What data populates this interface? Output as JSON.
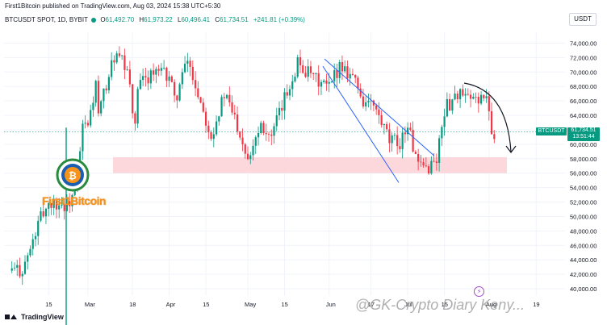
{
  "header": {
    "published": "First1Bitcoin published on TradingView.com, Aug 03, 2024 15:38 UTC+5:30",
    "symbol": "BTCUSDT SPOT, 1D, BYBIT",
    "open_label": "O",
    "open": "61,492.70",
    "high_label": "H",
    "high": "61,973.22",
    "low_label": "L",
    "low": "60,496.41",
    "close_label": "C",
    "close": "61,734.51",
    "change": "+241.81 (+0.39%)",
    "currency_button": "USDT"
  },
  "price_tag": {
    "pair": "BTCUSDT",
    "price": "61,734.51",
    "countdown": "13:51:44"
  },
  "logo_text": "First1Bitcoin",
  "watermark": "@GK-Crypto Diary Keny...",
  "footer": {
    "brand": "TradingView"
  },
  "colors": {
    "up": "#089981",
    "down": "#f23645",
    "zone": "#fcd1d6",
    "trendline": "#2962ff"
  },
  "icons": [
    "tradingview-logo-icon",
    "lightning-icon",
    "curved-arrow-icon",
    "first1bitcoin-logo-icon"
  ],
  "chart_data": {
    "type": "candlestick",
    "timeframe": "1D",
    "y_axis": {
      "ticks": [
        "74,000.00",
        "72,000.00",
        "70,000.00",
        "68,000.00",
        "66,000.00",
        "64,000.00",
        "62,000.00",
        "60,000.00",
        "58,000.00",
        "56,000.00",
        "54,000.00",
        "52,000.00",
        "50,000.00",
        "48,000.00",
        "46,000.00",
        "44,000.00",
        "42,000.00",
        "40,000.00"
      ],
      "range": [
        39000,
        75500
      ]
    },
    "x_axis": {
      "ticks": [
        "15",
        "Mar",
        "18",
        "Apr",
        "15",
        "May",
        "15",
        "Jun",
        "17",
        "Jul",
        "15",
        "Aug",
        "19"
      ]
    },
    "close_series": [
      {
        "date": "2024-02-01",
        "close": 42500
      },
      {
        "date": "2024-02-05",
        "close": 42700
      },
      {
        "date": "2024-02-08",
        "close": 45300
      },
      {
        "date": "2024-02-12",
        "close": 49900
      },
      {
        "date": "2024-02-15",
        "close": 51800
      },
      {
        "date": "2024-02-19",
        "close": 51800
      },
      {
        "date": "2024-02-22",
        "close": 51300
      },
      {
        "date": "2024-02-26",
        "close": 54500
      },
      {
        "date": "2024-02-28",
        "close": 62500
      },
      {
        "date": "2024-03-01",
        "close": 62400
      },
      {
        "date": "2024-03-04",
        "close": 68300
      },
      {
        "date": "2024-03-05",
        "close": 63800
      },
      {
        "date": "2024-03-08",
        "close": 68300
      },
      {
        "date": "2024-03-11",
        "close": 72100
      },
      {
        "date": "2024-03-14",
        "close": 71400
      },
      {
        "date": "2024-03-17",
        "close": 68400
      },
      {
        "date": "2024-03-19",
        "close": 61900
      },
      {
        "date": "2024-03-20",
        "close": 67800
      },
      {
        "date": "2024-03-25",
        "close": 69900
      },
      {
        "date": "2024-04-01",
        "close": 69600
      },
      {
        "date": "2024-04-03",
        "close": 65900
      },
      {
        "date": "2024-04-08",
        "close": 71600
      },
      {
        "date": "2024-04-12",
        "close": 67100
      },
      {
        "date": "2024-04-17",
        "close": 61300
      },
      {
        "date": "2024-04-22",
        "close": 66800
      },
      {
        "date": "2024-04-26",
        "close": 63800
      },
      {
        "date": "2024-05-01",
        "close": 58300
      },
      {
        "date": "2024-05-06",
        "close": 63100
      },
      {
        "date": "2024-05-10",
        "close": 60800
      },
      {
        "date": "2024-05-15",
        "close": 66200
      },
      {
        "date": "2024-05-20",
        "close": 71400
      },
      {
        "date": "2024-05-25",
        "close": 69300
      },
      {
        "date": "2024-06-01",
        "close": 67700
      },
      {
        "date": "2024-06-05",
        "close": 71100
      },
      {
        "date": "2024-06-10",
        "close": 69600
      },
      {
        "date": "2024-06-14",
        "close": 66000
      },
      {
        "date": "2024-06-18",
        "close": 65200
      },
      {
        "date": "2024-06-24",
        "close": 60300
      },
      {
        "date": "2024-06-28",
        "close": 60300
      },
      {
        "date": "2024-07-01",
        "close": 62800
      },
      {
        "date": "2024-07-05",
        "close": 56600
      },
      {
        "date": "2024-07-08",
        "close": 56700
      },
      {
        "date": "2024-07-12",
        "close": 57900
      },
      {
        "date": "2024-07-15",
        "close": 64800
      },
      {
        "date": "2024-07-20",
        "close": 67100
      },
      {
        "date": "2024-07-25",
        "close": 65800
      },
      {
        "date": "2024-07-29",
        "close": 66800
      },
      {
        "date": "2024-08-01",
        "close": 65300
      },
      {
        "date": "2024-08-02",
        "close": 61500
      },
      {
        "date": "2024-08-03",
        "close": 61734.51
      }
    ],
    "support_zone": [
      56000,
      58200
    ],
    "channel": "descending"
  }
}
